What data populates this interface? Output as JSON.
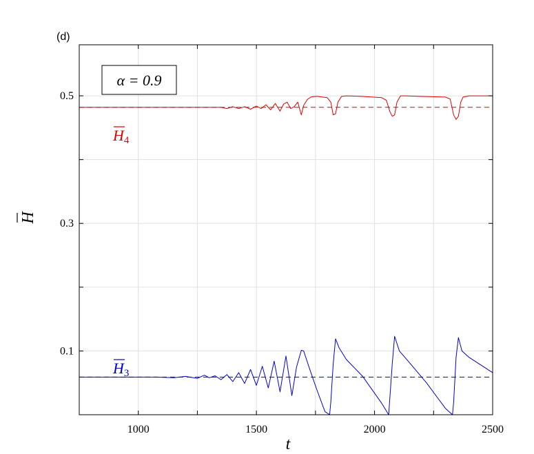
{
  "chart_data": {
    "type": "line",
    "panel_label": "(d)",
    "parameter_label": "α = 0.9",
    "xlabel": "t",
    "ylabel": "H",
    "xlim": [
      750,
      2500
    ],
    "ylim": [
      0,
      0.58
    ],
    "xticks": [
      1000,
      1500,
      2000,
      2500
    ],
    "xtick_labels": [
      "1000",
      "1500",
      "2000",
      "2500"
    ],
    "xgrid": [
      1000,
      1250,
      1500,
      1750,
      2000,
      2250,
      2500
    ],
    "yticks": [
      0.1,
      0.3,
      0.5
    ],
    "ytick_labels": [
      "0.1",
      "0.3",
      "0.5"
    ],
    "ygrid": [
      0.1,
      0.2,
      0.3,
      0.4,
      0.5
    ],
    "grid": true,
    "colors": {
      "H4": "#dd0000",
      "H3": "#0000cc",
      "frame": "#000000",
      "grid": "#e0e0e0"
    },
    "series": [
      {
        "label_base": "H",
        "label_sub": "4",
        "key": "H4",
        "baseline": 0.482,
        "x": [
          750,
          1300,
          1350,
          1375,
          1400,
          1425,
          1450,
          1475,
          1500,
          1520,
          1540,
          1560,
          1580,
          1600,
          1615,
          1630,
          1645,
          1660,
          1675,
          1690,
          1700,
          1715,
          1730,
          1745,
          1760,
          1780,
          1800,
          1815,
          1825,
          1835,
          1845,
          1860,
          1880,
          1950,
          2030,
          2050,
          2065,
          2075,
          2085,
          2095,
          2110,
          2130,
          2200,
          2300,
          2320,
          2335,
          2345,
          2355,
          2365,
          2375,
          2400,
          2450,
          2500
        ],
        "y": [
          0.482,
          0.482,
          0.482,
          0.48,
          0.483,
          0.48,
          0.483,
          0.479,
          0.484,
          0.48,
          0.486,
          0.478,
          0.488,
          0.476,
          0.487,
          0.49,
          0.48,
          0.483,
          0.49,
          0.47,
          0.485,
          0.494,
          0.498,
          0.499,
          0.499,
          0.498,
          0.497,
          0.49,
          0.47,
          0.472,
          0.49,
          0.499,
          0.5,
          0.499,
          0.497,
          0.493,
          0.475,
          0.468,
          0.47,
          0.49,
          0.5,
          0.5,
          0.499,
          0.498,
          0.495,
          0.47,
          0.463,
          0.468,
          0.49,
          0.498,
          0.5,
          0.5,
          0.5
        ]
      },
      {
        "label_base": "H",
        "label_sub": "3",
        "key": "H3",
        "baseline": 0.059,
        "x": [
          750,
          1075,
          1150,
          1200,
          1250,
          1280,
          1300,
          1325,
          1350,
          1375,
          1400,
          1425,
          1450,
          1475,
          1500,
          1525,
          1550,
          1575,
          1600,
          1625,
          1650,
          1670,
          1690,
          1700,
          1725,
          1755,
          1790,
          1810,
          1815,
          1825,
          1835,
          1850,
          1880,
          1950,
          2030,
          2060,
          2075,
          2085,
          2105,
          2140,
          2220,
          2300,
          2330,
          2335,
          2345,
          2355,
          2370,
          2400,
          2450,
          2500
        ],
        "y": [
          0.059,
          0.059,
          0.058,
          0.06,
          0.057,
          0.062,
          0.058,
          0.061,
          0.055,
          0.063,
          0.052,
          0.066,
          0.049,
          0.071,
          0.046,
          0.076,
          0.042,
          0.084,
          0.036,
          0.092,
          0.03,
          0.075,
          0.101,
          0.1,
          0.072,
          0.04,
          0.005,
          0.0,
          0.02,
          0.08,
          0.119,
          0.105,
          0.087,
          0.06,
          0.018,
          0.0,
          0.08,
          0.123,
          0.1,
          0.085,
          0.05,
          0.01,
          0.0,
          0.02,
          0.09,
          0.121,
          0.1,
          0.09,
          0.078,
          0.066
        ]
      }
    ]
  }
}
